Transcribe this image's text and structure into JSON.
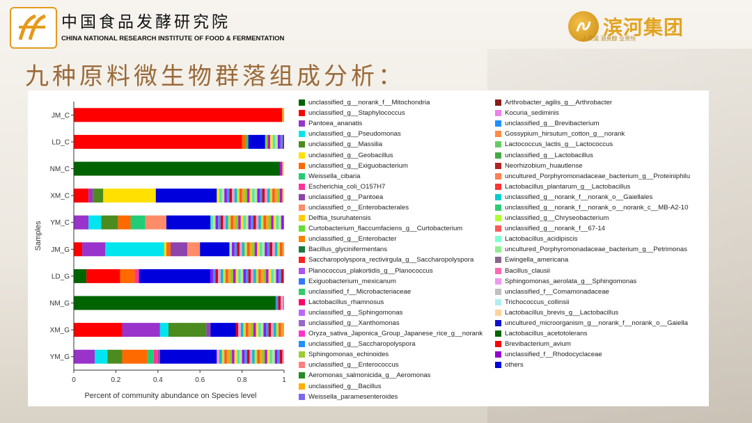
{
  "header": {
    "institute_cn": "中国食品发酵研究院",
    "institute_en": "CHINA NATIONAL RESEARCH INSTITUTE OF FOOD & FERMENTATION",
    "partner_name": "滨河集团",
    "partner_slogan": "人贵诚  酒贵醇  业贵恒"
  },
  "slide_title": "九种原料微生物群落组成分析：",
  "colors": {
    "title": "#9a6a3a",
    "brand_orange": "#e39a1d",
    "brand_gold": "#e2a31f"
  },
  "chart_data": {
    "type": "bar",
    "orientation": "horizontal",
    "stacked": true,
    "xlabel": "Percent of community abundance on Species level",
    "ylabel": "Samples",
    "xlim": [
      0,
      1
    ],
    "xticks": [
      "0",
      "0.2",
      "0.4",
      "0.6",
      "0.8",
      "1"
    ],
    "grid": false,
    "legend_position": "right",
    "categories": [
      "JM_C",
      "LD_C",
      "NM_C",
      "XM_C",
      "YM_C",
      "JM_G",
      "LD_G",
      "NM_G",
      "XM_G",
      "YM_G"
    ],
    "series": [
      {
        "name": "unclassified_g__norank_f__Mitochondria",
        "color": "#006400",
        "values": [
          0.0,
          0.0,
          0.98,
          0.0,
          0.0,
          0.0,
          0.06,
          0.96,
          0.0,
          0.0
        ]
      },
      {
        "name": "unclassified_g__Staphylococcus",
        "color": "#ff0000",
        "values": [
          0.99,
          0.8,
          0.0,
          0.07,
          0.0,
          0.04,
          0.16,
          0.0,
          0.23,
          0.0
        ]
      },
      {
        "name": "Pantoea_ananatis",
        "color": "#9933cc",
        "values": [
          0.0,
          0.0,
          0.0,
          0.02,
          0.07,
          0.11,
          0.0,
          0.0,
          0.18,
          0.1
        ]
      },
      {
        "name": "unclassified_g__Pseudomonas",
        "color": "#00e5ee",
        "values": [
          0.0,
          0.0,
          0.0,
          0.0,
          0.06,
          0.28,
          0.0,
          0.0,
          0.04,
          0.06
        ]
      },
      {
        "name": "unclassified_g__Massilia",
        "color": "#4c8c1e",
        "values": [
          0.0,
          0.0,
          0.0,
          0.05,
          0.08,
          0.0,
          0.0,
          0.0,
          0.18,
          0.07
        ]
      },
      {
        "name": "unclassified_g__Geobacillus",
        "color": "#ffe000",
        "values": [
          0.0,
          0.0,
          0.0,
          0.25,
          0.0,
          0.01,
          0.0,
          0.0,
          0.0,
          0.0
        ]
      },
      {
        "name": "unclassified_g__Exiguobacterium",
        "color": "#ff6a00",
        "values": [
          0.0,
          0.02,
          0.0,
          0.0,
          0.06,
          0.02,
          0.07,
          0.0,
          0.0,
          0.12
        ]
      },
      {
        "name": "Weissella_cibaria",
        "color": "#22cc77",
        "values": [
          0.0,
          0.01,
          0.0,
          0.0,
          0.07,
          0.0,
          0.0,
          0.0,
          0.0,
          0.03
        ]
      },
      {
        "name": "Escherichia_coli_O157H7",
        "color": "#ff3399",
        "values": [
          0.0,
          0.0,
          0.0,
          0.0,
          0.0,
          0.0,
          0.02,
          0.0,
          0.0,
          0.02
        ]
      },
      {
        "name": "unclassified_g__Pantoea",
        "color": "#8e44ad",
        "values": [
          0.0,
          0.0,
          0.0,
          0.0,
          0.0,
          0.08,
          0.0,
          0.0,
          0.02,
          0.01
        ]
      },
      {
        "name": "unclassified_o__Enterobacterales",
        "color": "#ff8c69",
        "values": [
          0.0,
          0.0,
          0.0,
          0.0,
          0.1,
          0.06,
          0.0,
          0.0,
          0.0,
          0.0
        ]
      },
      {
        "name": "others",
        "color": "#0000dd",
        "values": [
          0.0,
          0.08,
          0.0,
          0.29,
          0.21,
          0.14,
          0.34,
          0.0,
          0.12,
          0.27
        ]
      }
    ],
    "remainder_colors": [
      "#f5a623",
      "#7ed321",
      "#bd10e0",
      "#f8e71c",
      "#50e3c2",
      "#b8e986",
      "#9013fe",
      "#4a90e2",
      "#d0021b",
      "#ff99cc",
      "#00bcd4",
      "#cddc39",
      "#ff5722"
    ],
    "legend_col1": [
      {
        "name": "unclassified_g__norank_f__Mitochondria",
        "color": "#006400"
      },
      {
        "name": "unclassified_g__Staphylococcus",
        "color": "#ff0000"
      },
      {
        "name": "Pantoea_ananatis",
        "color": "#9933cc"
      },
      {
        "name": "unclassified_g__Pseudomonas",
        "color": "#00e5ee"
      },
      {
        "name": "unclassified_g__Massilia",
        "color": "#4c8c1e"
      },
      {
        "name": "unclassified_g__Geobacillus",
        "color": "#ffe000"
      },
      {
        "name": "unclassified_g__Exiguobacterium",
        "color": "#ff6a00"
      },
      {
        "name": "Weissella_cibaria",
        "color": "#22cc77"
      },
      {
        "name": "Escherichia_coli_O157H7",
        "color": "#ff3399"
      },
      {
        "name": "unclassified_g__Pantoea",
        "color": "#8e44ad"
      },
      {
        "name": "unclassified_o__Enterobacterales",
        "color": "#ff8c69"
      },
      {
        "name": "Delftia_tsuruhatensis",
        "color": "#ffcc00"
      },
      {
        "name": "Curtobacterium_flaccumfaciens_g__Curtobacterium",
        "color": "#66dd33"
      },
      {
        "name": "unclassified_g__Enterobacter",
        "color": "#ff8000"
      },
      {
        "name": "Bacillus_glycinifermentans",
        "color": "#1a7a3a"
      },
      {
        "name": "Saccharopolyspora_rectivirgula_g__Saccharopolyspora",
        "color": "#ff2020"
      },
      {
        "name": "Planococcus_plakortidis_g__Planococcus",
        "color": "#aa55ee"
      },
      {
        "name": "Exiguobacterium_mexicanum",
        "color": "#3377ff"
      },
      {
        "name": "unclassified_f__Microbacteriaceae",
        "color": "#33cc66"
      },
      {
        "name": "Lactobacillus_rhamnosus",
        "color": "#ff0066"
      },
      {
        "name": "unclassified_g__Sphingomonas",
        "color": "#bb66ff"
      },
      {
        "name": "unclassified_g__Xanthomonas",
        "color": "#9966cc"
      },
      {
        "name": "Oryza_sativa_Japonica_Group_Japanese_rice_g__norank",
        "color": "#ff33cc"
      },
      {
        "name": "unclassified_g__Saccharopolyspora",
        "color": "#1e90ff"
      },
      {
        "name": "Sphingomonas_echinoides",
        "color": "#9acd32"
      },
      {
        "name": "unclassified_g__Enterococcus",
        "color": "#ff7f7f"
      },
      {
        "name": "Aeromonas_salmonicida_g__Aeromonas",
        "color": "#228b22"
      },
      {
        "name": "unclassified_g__Bacillus",
        "color": "#ffb000"
      },
      {
        "name": "Weissella_paramesenteroides",
        "color": "#7b68ee"
      }
    ],
    "legend_col2": [
      {
        "name": "Arthrobacter_agilis_g__Arthrobacter",
        "color": "#8b1a1a"
      },
      {
        "name": "Kocuria_sediminis",
        "color": "#ee82ee"
      },
      {
        "name": "unclassified_g__Brevibacterium",
        "color": "#1e90ff"
      },
      {
        "name": "Gossypium_hirsutum_cotton_g__norank",
        "color": "#ff8c42"
      },
      {
        "name": "Lactococcus_lactis_g__Lactococcus",
        "color": "#66cc66"
      },
      {
        "name": "unclassified_g__Lactobacillus",
        "color": "#44aa44"
      },
      {
        "name": "Neorhizobium_huautlense",
        "color": "#b22222"
      },
      {
        "name": "uncultured_Porphyromonadaceae_bacterium_g__Proteiniphilu",
        "color": "#ff7f50"
      },
      {
        "name": "Lactobacillus_plantarum_g__Lactobacillus",
        "color": "#ff3333"
      },
      {
        "name": "unclassified_g__norank_f__norank_o__Gaiellales",
        "color": "#00ced1"
      },
      {
        "name": "unclassified_g__norank_f__norank_o__norank_c__MB-A2-10",
        "color": "#2ecc71"
      },
      {
        "name": "unclassified_g__Chryseobacterium",
        "color": "#adff2f"
      },
      {
        "name": "unclassified_g__norank_f__67-14",
        "color": "#ff5a5a"
      },
      {
        "name": "Lactobacillus_acidipiscis",
        "color": "#7fffd4"
      },
      {
        "name": "uncultured_Porphyromonadaceae_bacterium_g__Petrimonas",
        "color": "#90ee90"
      },
      {
        "name": "Ewingella_americana",
        "color": "#8b668b"
      },
      {
        "name": "Bacillus_clausii",
        "color": "#ff69b4"
      },
      {
        "name": "Sphingomonas_aerolata_g__Sphingomonas",
        "color": "#ee99ee"
      },
      {
        "name": "unclassified_f__Comamonadaceae",
        "color": "#c0c0c0"
      },
      {
        "name": "Trichococcus_collinsii",
        "color": "#afeeee"
      },
      {
        "name": "Lactobacillus_brevis_g__Lactobacillus",
        "color": "#ffd39b"
      },
      {
        "name": "uncultured_microorganism_g__norank_f__norank_o__Gaiella",
        "color": "#1010cc"
      },
      {
        "name": "Lactobacillus_acetotolerans",
        "color": "#006400"
      },
      {
        "name": "Brevibacterium_avium",
        "color": "#ff0000"
      },
      {
        "name": "unclassified_f__Rhodocyclaceae",
        "color": "#9400d3"
      },
      {
        "name": "others",
        "color": "#0000dd"
      }
    ]
  }
}
